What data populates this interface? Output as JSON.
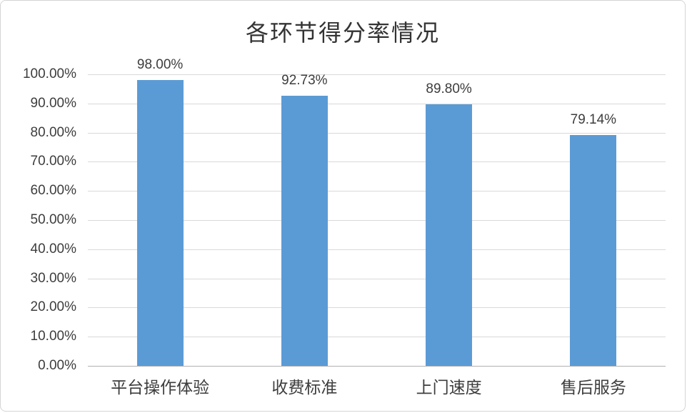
{
  "chart_data": {
    "type": "bar",
    "title": "各环节得分率情况",
    "categories": [
      "平台操作体验",
      "收费标准",
      "上门速度",
      "售后服务"
    ],
    "values": [
      98.0,
      92.73,
      89.8,
      79.14
    ],
    "data_labels": [
      "98.00%",
      "92.73%",
      "89.80%",
      "79.14%"
    ],
    "y_ticks": [
      "100.00%",
      "90.00%",
      "80.00%",
      "70.00%",
      "60.00%",
      "50.00%",
      "40.00%",
      "30.00%",
      "20.00%",
      "10.00%",
      "0.00%"
    ],
    "ylim": [
      0,
      100
    ],
    "xlabel": "",
    "ylabel": "",
    "grid": "horizontal",
    "legend_position": "none",
    "bar_color": "#5b9bd5",
    "gridline_color": "#d9d9d9",
    "axis_line_color": "#b0b0b0",
    "label_color": "#3d3d3d",
    "title_color": "#333333"
  }
}
